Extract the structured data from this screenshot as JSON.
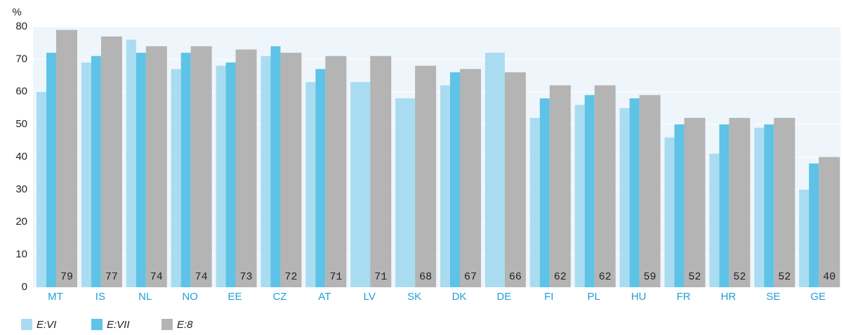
{
  "chart_data": {
    "type": "bar",
    "y_label": "%",
    "categories": [
      "MT",
      "IS",
      "NL",
      "NO",
      "EE",
      "CZ",
      "AT",
      "LV",
      "SK",
      "DK",
      "DE",
      "FI",
      "PL",
      "HU",
      "FR",
      "HR",
      "SE",
      "GE"
    ],
    "series": [
      {
        "name": "E:VI",
        "color": "#a9dcf1",
        "values": [
          60,
          69,
          76,
          67,
          68,
          71,
          63,
          63,
          58,
          62,
          72,
          52,
          56,
          55,
          46,
          41,
          49,
          30
        ]
      },
      {
        "name": "E:VII",
        "color": "#5ec3e6",
        "values": [
          72,
          71,
          72,
          72,
          69,
          74,
          67,
          null,
          null,
          66,
          null,
          58,
          59,
          58,
          50,
          50,
          50,
          38
        ]
      },
      {
        "name": "E:8",
        "color": "#b4b4b4",
        "values": [
          79,
          77,
          74,
          74,
          73,
          72,
          71,
          71,
          68,
          67,
          66,
          62,
          62,
          59,
          52,
          52,
          52,
          40
        ]
      }
    ],
    "ylim": [
      0,
      80
    ],
    "yticks": [
      0,
      10,
      20,
      30,
      40,
      50,
      60,
      70,
      80
    ],
    "grid": true,
    "data_labels_series": 2
  }
}
